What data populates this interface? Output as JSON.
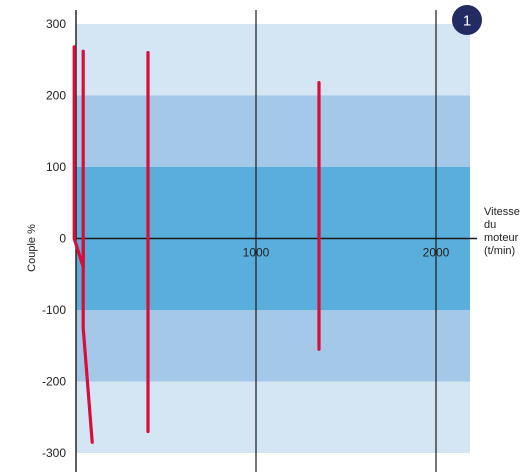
{
  "chart_data": {
    "type": "line",
    "badge": "1",
    "xlabel": [
      "Vitesse",
      "du",
      "moteur",
      "(t/min)"
    ],
    "ylabel": "Couple %",
    "xlim": [
      -200,
      2200
    ],
    "ylim": [
      -300,
      300
    ],
    "x_ticks": [
      {
        "value": 1000,
        "label": "1000"
      },
      {
        "value": 2000,
        "label": "2000"
      }
    ],
    "y_ticks": [
      {
        "value": 300,
        "label": "300"
      },
      {
        "value": 200,
        "label": "200"
      },
      {
        "value": 100,
        "label": "100"
      },
      {
        "value": 0,
        "label": "0"
      },
      {
        "value": -100,
        "label": "-100"
      },
      {
        "value": -200,
        "label": "-200"
      },
      {
        "value": -300,
        "label": "-300"
      }
    ],
    "bands": [
      {
        "from": 200,
        "to": 300,
        "color": "#d4e5f3"
      },
      {
        "from": 100,
        "to": 200,
        "color": "#a3c8e8"
      },
      {
        "from": -100,
        "to": 100,
        "color": "#5aaedc"
      },
      {
        "from": -200,
        "to": -100,
        "color": "#a3c8e8"
      },
      {
        "from": -300,
        "to": -200,
        "color": "#d4e5f3"
      }
    ],
    "series": [
      {
        "x": [
          -10,
          -10,
          40,
          40
        ],
        "y": [
          268,
          0,
          -40,
          0
        ]
      },
      {
        "x": [
          40,
          40,
          40,
          90
        ],
        "y": [
          262,
          0,
          -125,
          -285
        ]
      },
      {
        "x": [
          400,
          400
        ],
        "y": [
          260,
          -270
        ]
      },
      {
        "x": [
          1350,
          1350
        ],
        "y": [
          218,
          -155
        ]
      }
    ],
    "colors": {
      "line": "#d90d3a",
      "axis": "#1a1a1a",
      "badge": "#232b63"
    }
  }
}
